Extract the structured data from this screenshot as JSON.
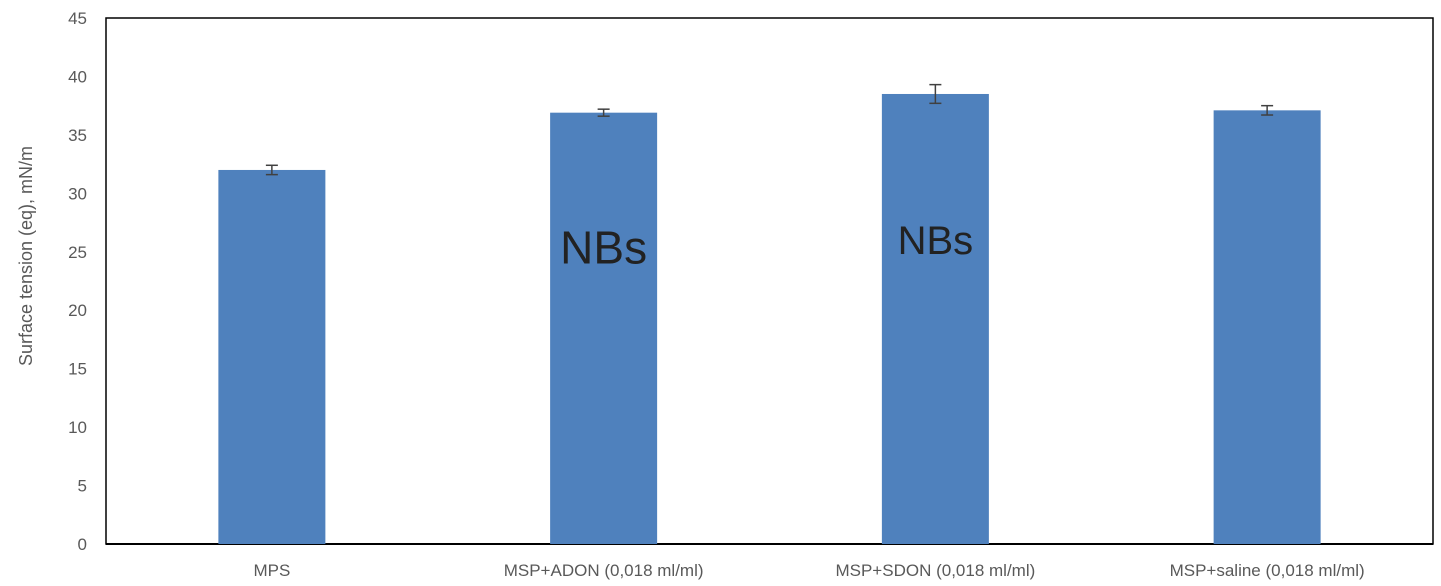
{
  "chart_data": {
    "type": "bar",
    "title": "",
    "xlabel": "",
    "ylabel": "Surface tension (eq), mN/m",
    "ylim": [
      0,
      45
    ],
    "yticks": [
      0,
      5,
      10,
      15,
      20,
      25,
      30,
      35,
      40,
      45
    ],
    "grid": false,
    "bar_color": "#4F81BD",
    "errorbar_color": "#404040",
    "categories": [
      "MPS",
      "MSP+ADON (0,018 ml/ml)",
      "MSP+SDON (0,018 ml/ml)",
      "MSP+saline (0,018 ml/ml)"
    ],
    "values": [
      32.0,
      36.9,
      38.5,
      37.1
    ],
    "errors": [
      0.4,
      0.3,
      0.8,
      0.4
    ],
    "annotations": [
      {
        "text": "NBs",
        "category_index": 1,
        "y": 24.0,
        "size": "large"
      },
      {
        "text": "NBs",
        "category_index": 2,
        "y": 24.8,
        "size": "medium"
      }
    ]
  }
}
